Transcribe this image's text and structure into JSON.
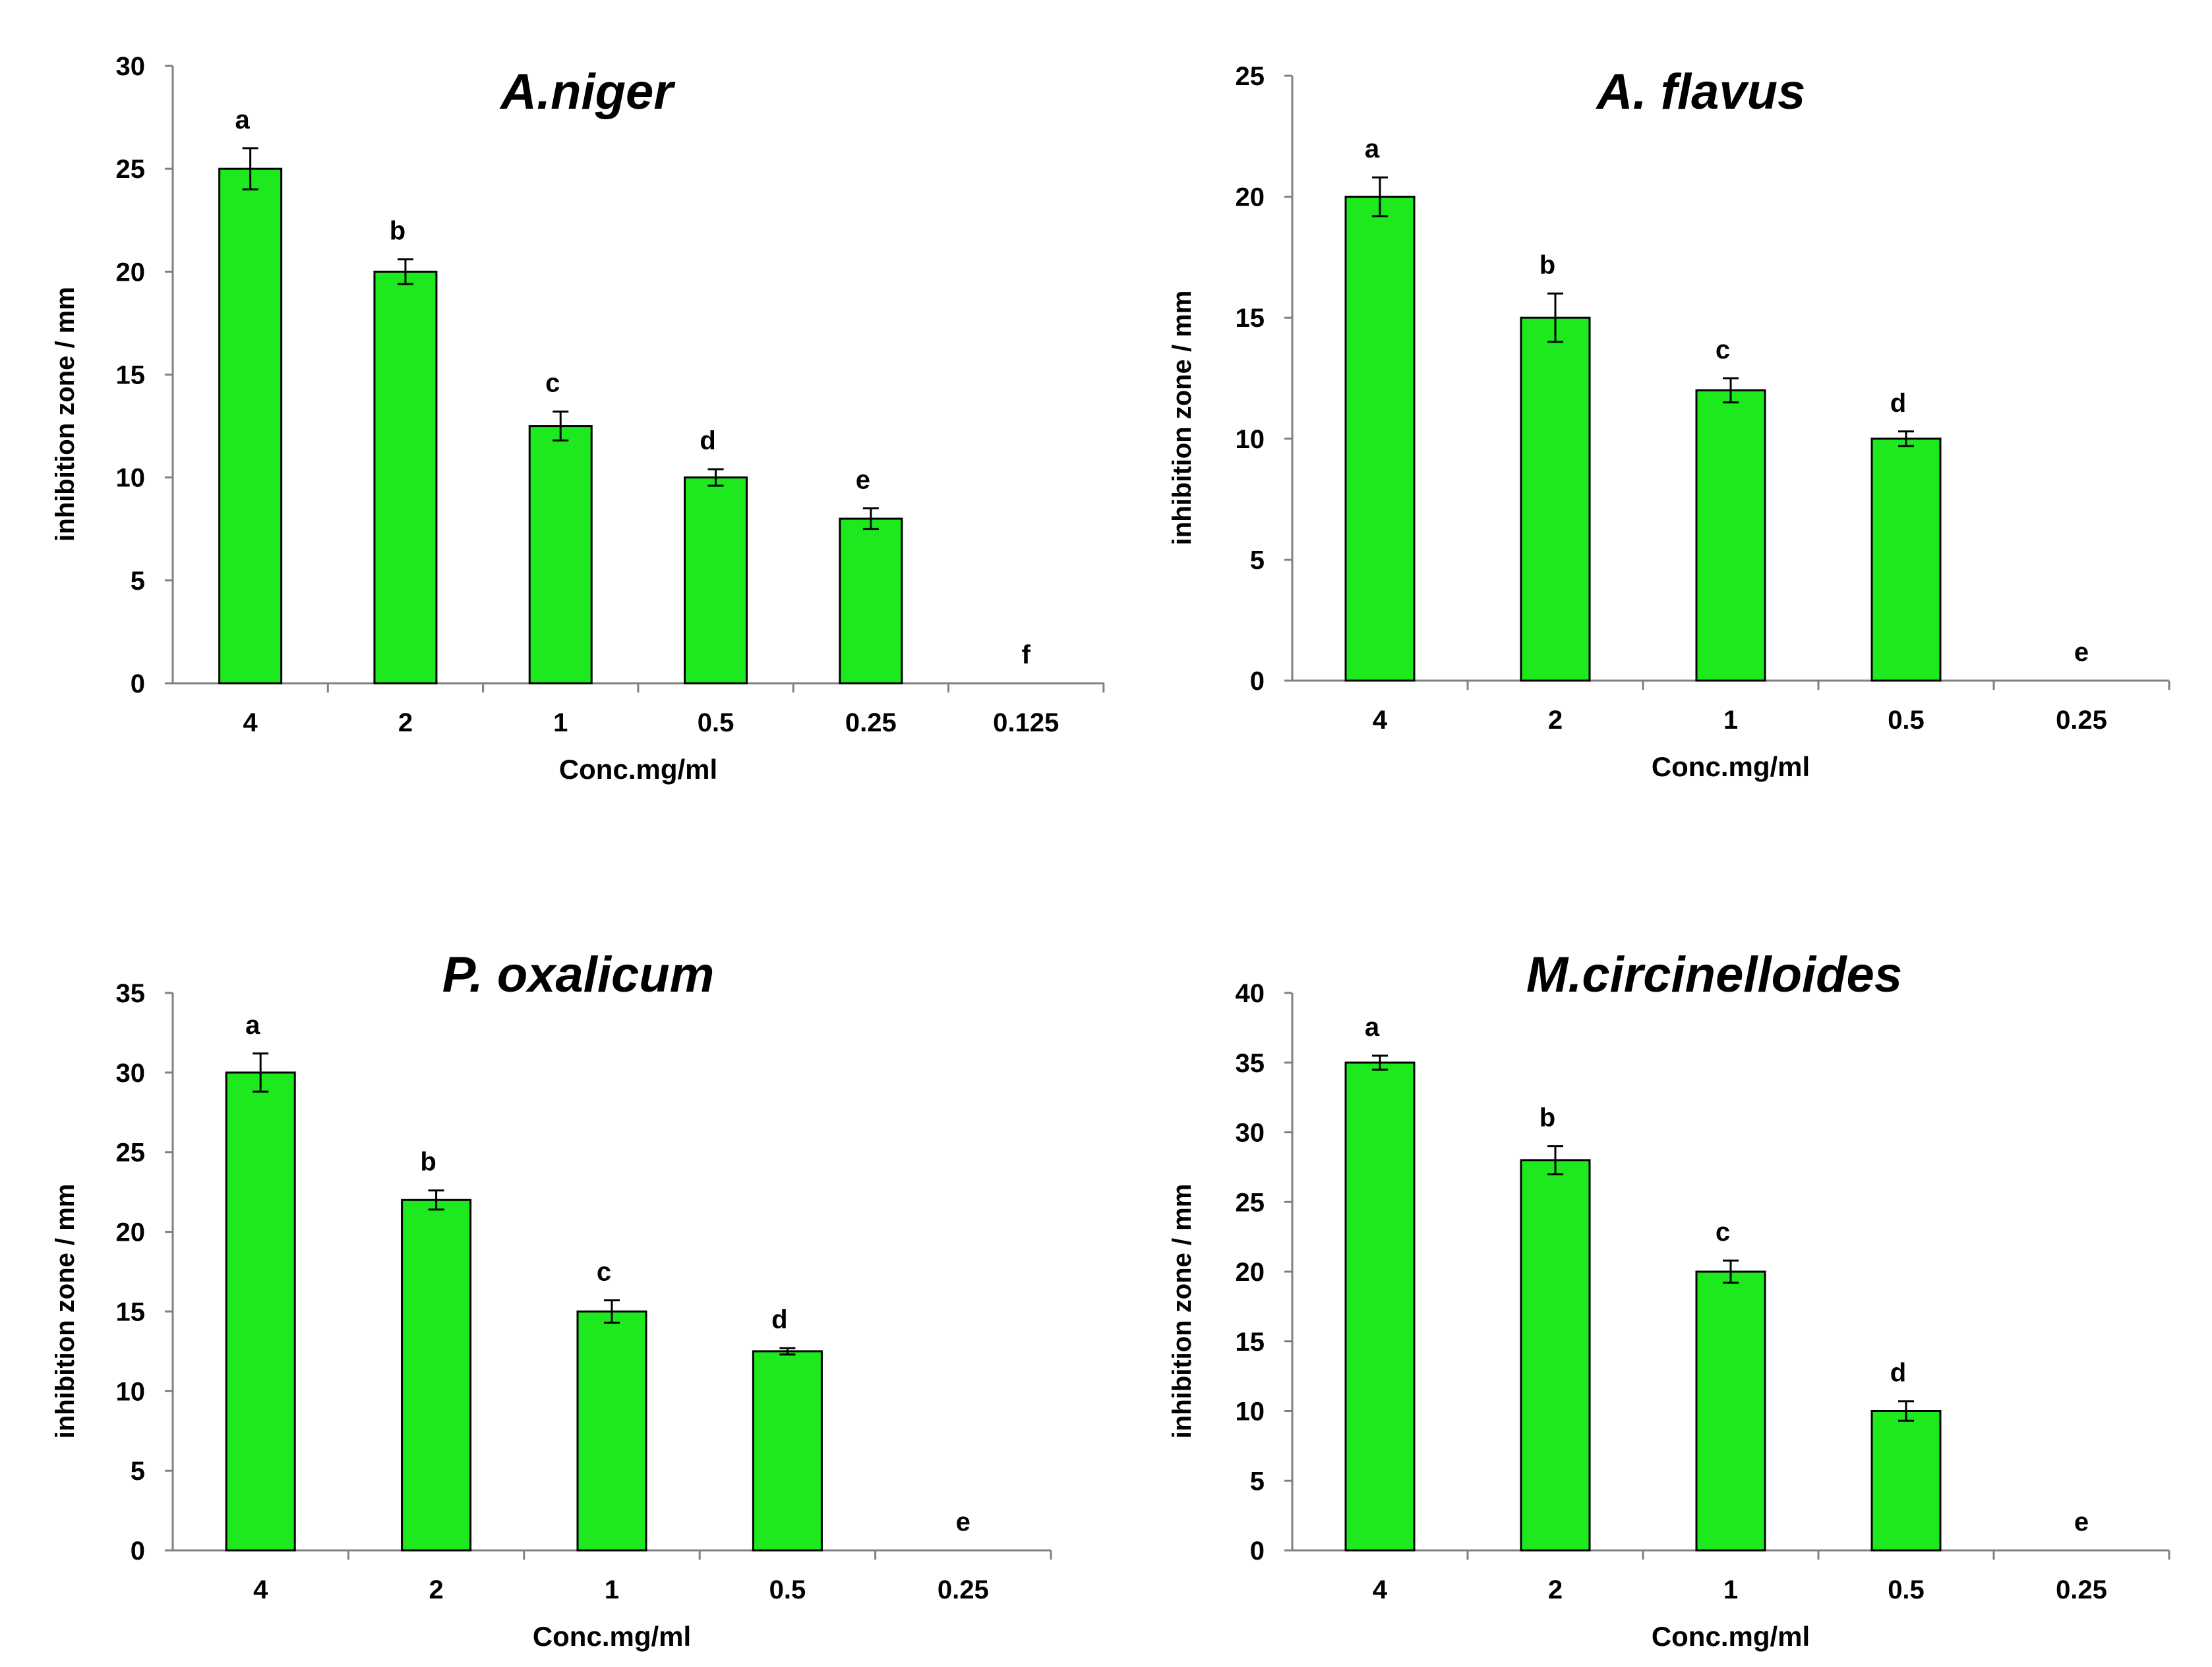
{
  "chart_data": [
    {
      "type": "bar",
      "title": "A.niger",
      "xlabel": "Conc.mg/ml",
      "ylabel": "inhibition zone / mm",
      "ylim": [
        0,
        30
      ],
      "yticks": [
        0,
        5,
        10,
        15,
        20,
        25,
        30
      ],
      "categories": [
        "4",
        "2",
        "1",
        "0.5",
        "0.25",
        "0.125"
      ],
      "values": [
        25,
        20,
        12.5,
        10,
        8,
        0
      ],
      "errors": [
        1.0,
        0.6,
        0.7,
        0.4,
        0.5,
        0
      ],
      "significance": [
        "a",
        "b",
        "c",
        "d",
        "e",
        "f"
      ],
      "color": "#1ee81e"
    },
    {
      "type": "bar",
      "title": "A. flavus",
      "xlabel": "Conc.mg/ml",
      "ylabel": "inhibition zone / mm",
      "ylim": [
        0,
        25
      ],
      "yticks": [
        0,
        5,
        10,
        15,
        20,
        25
      ],
      "categories": [
        "4",
        "2",
        "1",
        "0.5",
        "0.25"
      ],
      "values": [
        20,
        15,
        12,
        10,
        0
      ],
      "errors": [
        0.8,
        1.0,
        0.5,
        0.3,
        0
      ],
      "significance": [
        "a",
        "b",
        "c",
        "d",
        "e"
      ],
      "color": "#1ee81e"
    },
    {
      "type": "bar",
      "title": "P. oxalicum",
      "xlabel": "Conc.mg/ml",
      "ylabel": "inhibition zone / mm",
      "ylim": [
        0,
        35
      ],
      "yticks": [
        0,
        5,
        10,
        15,
        20,
        25,
        30,
        35
      ],
      "categories": [
        "4",
        "2",
        "1",
        "0.5",
        "0.25"
      ],
      "values": [
        30,
        22,
        15,
        12.5,
        0
      ],
      "errors": [
        1.2,
        0.6,
        0.7,
        0.2,
        0
      ],
      "significance": [
        "a",
        "b",
        "c",
        "d",
        "e"
      ],
      "color": "#1ee81e"
    },
    {
      "type": "bar",
      "title": "M.circinelloides",
      "xlabel": "Conc.mg/ml",
      "ylabel": "inhibition zone / mm",
      "ylim": [
        0,
        40
      ],
      "yticks": [
        0,
        5,
        10,
        15,
        20,
        25,
        30,
        35,
        40
      ],
      "categories": [
        "4",
        "2",
        "1",
        "0.5",
        "0.25"
      ],
      "values": [
        35,
        28,
        20,
        10,
        0
      ],
      "errors": [
        0.5,
        1.0,
        0.8,
        0.7,
        0
      ],
      "significance": [
        "a",
        "b",
        "c",
        "d",
        "e"
      ],
      "color": "#1ee81e"
    }
  ]
}
